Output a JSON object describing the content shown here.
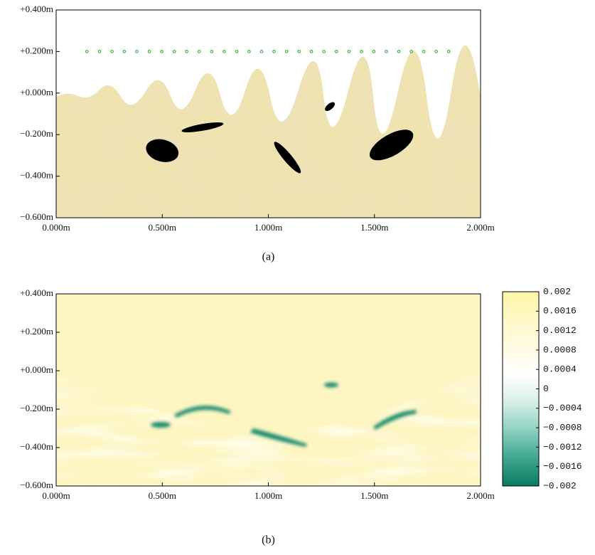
{
  "chart_data": [
    {
      "type": "model",
      "caption": "(a)",
      "xlim": [
        0,
        2
      ],
      "ylim": [
        -0.6,
        0.4
      ],
      "xticks": [
        {
          "value": 0,
          "label": "0.000m"
        },
        {
          "value": 0.5,
          "label": "0.500m"
        },
        {
          "value": 1,
          "label": "1.000m"
        },
        {
          "value": 1.5,
          "label": "1.500m"
        },
        {
          "value": 2,
          "label": "2.000m"
        }
      ],
      "yticks": [
        {
          "value": 0.4,
          "label": "+0.400m"
        },
        {
          "value": 0.2,
          "label": "+0.200m"
        },
        {
          "value": 0,
          "label": "+0.000m"
        },
        {
          "value": -0.2,
          "label": "−0.200m"
        },
        {
          "value": -0.4,
          "label": "−0.400m"
        },
        {
          "value": -0.6,
          "label": "−0.600m"
        }
      ],
      "receivers": {
        "color": "#2ca02c",
        "y": 0.2,
        "x": [
          0.145,
          0.204,
          0.263,
          0.321,
          0.38,
          0.439,
          0.498,
          0.557,
          0.615,
          0.674,
          0.733,
          0.792,
          0.851,
          0.909,
          0.968,
          1.027,
          1.086,
          1.145,
          1.203,
          1.262,
          1.321,
          1.38,
          1.439,
          1.497,
          1.556,
          1.615,
          1.674,
          1.733,
          1.791,
          1.85
        ]
      },
      "objects": [
        {
          "cx": 0.5,
          "cy": -0.277,
          "rx": 0.078,
          "ry": 0.052,
          "angle": 15
        },
        {
          "cx": 0.69,
          "cy": -0.165,
          "rx": 0.1,
          "ry": 0.016,
          "angle": -10
        },
        {
          "cx": 1.09,
          "cy": -0.31,
          "rx": 0.095,
          "ry": 0.02,
          "angle": 50
        },
        {
          "cx": 1.29,
          "cy": -0.065,
          "rx": 0.028,
          "ry": 0.014,
          "angle": -40
        },
        {
          "cx": 1.58,
          "cy": -0.25,
          "rx": 0.115,
          "ry": 0.05,
          "angle": -30
        }
      ]
    },
    {
      "type": "heatmap",
      "caption": "(b)",
      "xlim": [
        0,
        2
      ],
      "ylim": [
        -0.6,
        0.4
      ],
      "xticks": [
        {
          "value": 0,
          "label": "0.000m"
        },
        {
          "value": 0.5,
          "label": "0.500m"
        },
        {
          "value": 1,
          "label": "1.000m"
        },
        {
          "value": 1.5,
          "label": "1.500m"
        },
        {
          "value": 2,
          "label": "2.000m"
        }
      ],
      "yticks": [
        {
          "value": 0.4,
          "label": "+0.400m"
        },
        {
          "value": 0.2,
          "label": "+0.200m"
        },
        {
          "value": 0,
          "label": "+0.000m"
        },
        {
          "value": -0.2,
          "label": "−0.200m"
        },
        {
          "value": -0.4,
          "label": "−0.400m"
        },
        {
          "value": -0.6,
          "label": "−0.600m"
        }
      ],
      "clim": [
        -0.002,
        0.002
      ],
      "colormap": [
        "#0b7a61",
        "#3fa58f",
        "#8cd0c0",
        "#d5eee8",
        "#ffffff",
        "#fffbe2",
        "#fef8c6",
        "#fef5a8"
      ],
      "cticks": [
        0.002,
        0.0016,
        0.0012,
        0.0008,
        0.0004,
        0,
        {
          "value": -0.0004,
          "label": "−0.0004"
        },
        {
          "value": -0.0008,
          "label": "−0.0008"
        },
        {
          "value": -0.0012,
          "label": "−0.0012"
        },
        {
          "value": -0.0016,
          "label": "−0.0016"
        },
        {
          "value": -0.002,
          "label": "−0.002"
        }
      ]
    }
  ]
}
